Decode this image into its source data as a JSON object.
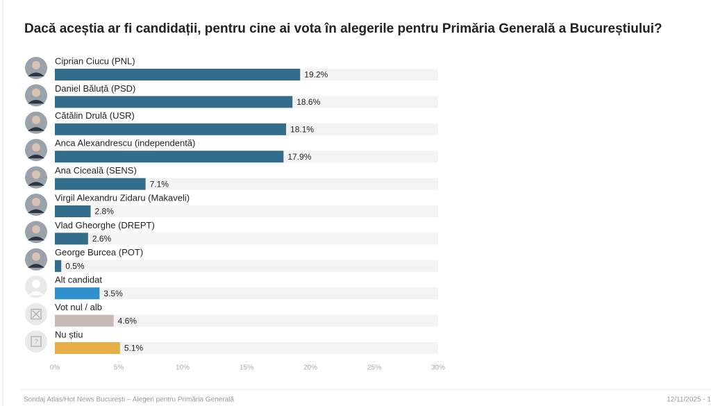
{
  "chart_data": {
    "type": "bar",
    "orientation": "horizontal",
    "title": "Dacă aceștia ar fi candidații, pentru cine ai vota în alegerile pentru Primăria Generală a Bucureștiului?",
    "categories": [
      "Ciprian Ciucu (PNL)",
      "Daniel Băluță (PSD)",
      "Cătălin Drulă (USR)",
      "Anca Alexandrescu (independentă)",
      "Ana Ciceală (SENS)",
      "Virgil Alexandru Zidaru (Makaveli)",
      "Vlad Gheorghe (DREPT)",
      "George Burcea (POT)",
      "Alt candidat",
      "Vot nul / alb",
      "Nu știu"
    ],
    "values": [
      19.2,
      18.6,
      18.1,
      17.9,
      7.1,
      2.8,
      2.6,
      0.5,
      3.5,
      4.6,
      5.1
    ],
    "value_labels": [
      "19.2%",
      "18.6%",
      "18.1%",
      "17.9%",
      "7.1%",
      "2.8%",
      "2.6%",
      "0.5%",
      "3.5%",
      "4.6%",
      "5.1%"
    ],
    "colors": [
      "#336d8c",
      "#336d8c",
      "#336d8c",
      "#336d8c",
      "#336d8c",
      "#336d8c",
      "#336d8c",
      "#336d8c",
      "#2e8fcc",
      "#c8b9b4",
      "#e6ae45"
    ],
    "xlim": [
      0,
      30
    ],
    "xticks": [
      {
        "value": 0,
        "label": "0%"
      },
      {
        "value": 5,
        "label": "5%"
      },
      {
        "value": 10,
        "label": "10%"
      },
      {
        "value": 15,
        "label": "15%"
      },
      {
        "value": 20,
        "label": "20%"
      },
      {
        "value": 25,
        "label": "25%"
      },
      {
        "value": 30,
        "label": "30%"
      }
    ],
    "source": "Sondaj Atlas/Hot News București – Alegeri pentru Primăria Generală",
    "date": "12/11/2025 - 1"
  }
}
